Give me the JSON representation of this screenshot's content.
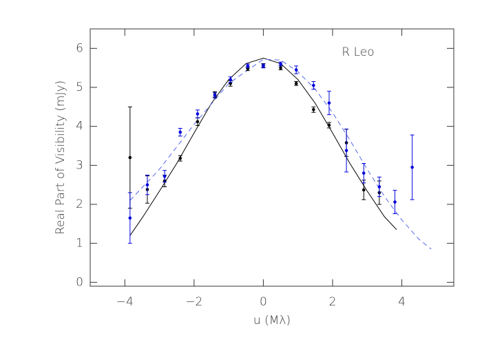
{
  "chart_data": {
    "type": "scatter",
    "annotation": "R Leo",
    "xlabel": "u (Mλ)",
    "ylabel": "Real Part of Visibility (mJy)",
    "xlim": [
      -5,
      5.5
    ],
    "ylim": [
      -0.1,
      6.5
    ],
    "xticks": [
      {
        "value": -4,
        "label": "−4"
      },
      {
        "value": -2,
        "label": "−2"
      },
      0,
      2,
      4
    ],
    "yticks": [
      0,
      1,
      2,
      3,
      4,
      5,
      6
    ],
    "series": [
      {
        "color": "#000000",
        "x": [
          -3.85,
          -3.35,
          -2.85,
          -2.4,
          -1.9,
          -1.4,
          -0.95,
          -0.45,
          0,
          0.5,
          0.95,
          1.45,
          1.9,
          2.4,
          2.9,
          3.35
        ],
        "values": [
          3.2,
          2.38,
          2.6,
          3.18,
          4.12,
          4.82,
          5.1,
          5.48,
          5.56,
          5.5,
          5.1,
          4.43,
          4.03,
          3.58,
          2.37,
          2.3
        ],
        "errors": [
          1.3,
          0.35,
          0.15,
          0.07,
          0.1,
          0.07,
          0.07,
          0.05,
          0.05,
          0.05,
          0.05,
          0.07,
          0.07,
          0.35,
          0.25,
          0.3
        ]
      },
      {
        "color": "#0000dd",
        "x": [
          -3.85,
          -3.35,
          -2.85,
          -2.4,
          -1.9,
          -1.4,
          -0.95,
          -0.45,
          0,
          0.5,
          0.95,
          1.45,
          1.9,
          2.4,
          2.9,
          3.35,
          3.8,
          4.3
        ],
        "values": [
          1.65,
          2.5,
          2.72,
          3.85,
          4.32,
          4.8,
          5.2,
          5.55,
          5.55,
          5.6,
          5.45,
          5.05,
          4.6,
          3.38,
          2.8,
          2.45,
          2.06,
          2.95
        ],
        "errors": [
          0.65,
          0.25,
          0.15,
          0.1,
          0.1,
          0.07,
          0.07,
          0.05,
          0.05,
          0.05,
          0.1,
          0.1,
          0.3,
          0.55,
          0.25,
          0.25,
          0.3,
          0.83
        ]
      }
    ],
    "models": [
      {
        "color": "#000000",
        "linestyle": "solid",
        "x": [
          -3.85,
          -3.5,
          -3,
          -2.5,
          -2,
          -1.5,
          -1,
          -0.5,
          0,
          0.5,
          1,
          1.5,
          2,
          2.5,
          3,
          3.5,
          3.85
        ],
        "values": [
          1.2,
          1.65,
          2.34,
          3.05,
          3.83,
          4.59,
          5.2,
          5.61,
          5.75,
          5.61,
          5.2,
          4.59,
          3.83,
          3.05,
          2.34,
          1.68,
          1.35
        ]
      },
      {
        "color": "#5566ee",
        "linestyle": "dashed",
        "x": [
          -3.85,
          -3,
          -2,
          -1,
          0,
          0.5,
          1,
          1.5,
          2,
          2.5,
          3,
          3.5,
          4,
          4.5,
          4.85
        ],
        "values": [
          2.1,
          2.9,
          4.05,
          5.1,
          5.72,
          5.7,
          5.4,
          4.95,
          4.35,
          3.65,
          2.9,
          2.2,
          1.6,
          1.1,
          0.85
        ]
      }
    ]
  }
}
